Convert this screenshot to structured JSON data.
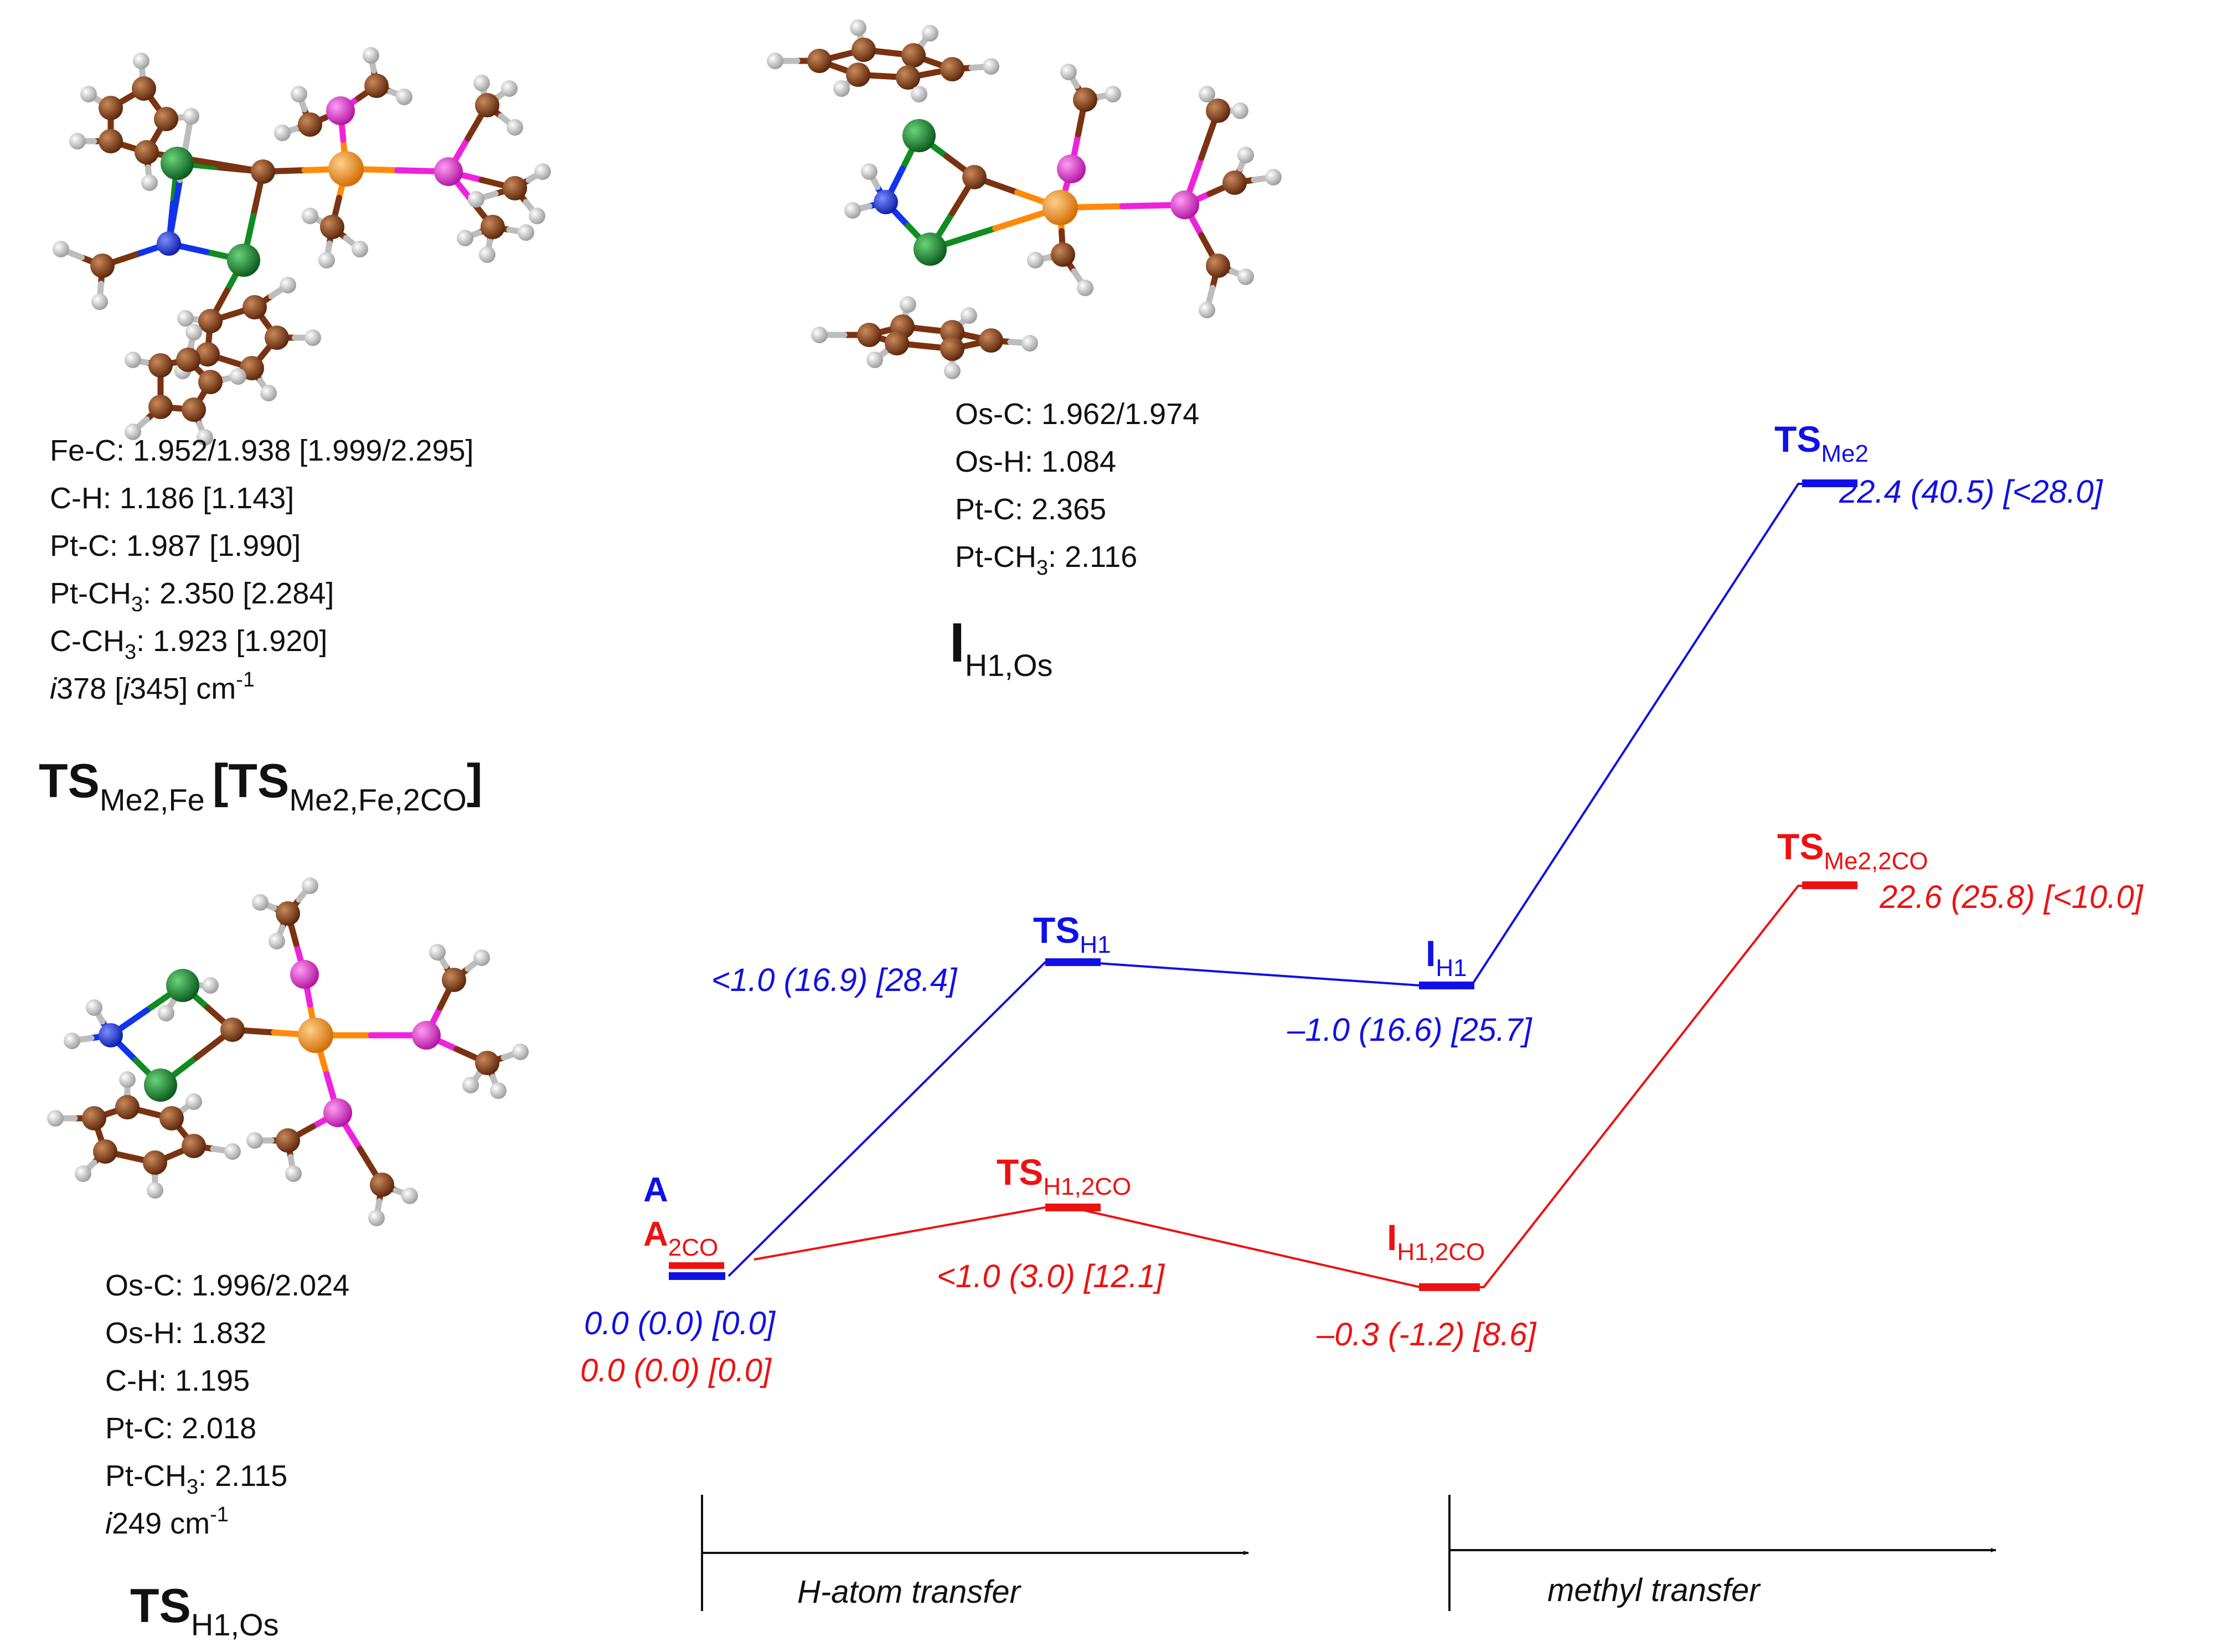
{
  "colors": {
    "blue": "#1010e6",
    "red": "#ee1111",
    "carbon": "#7a3311",
    "hydrogen": "#d8d8d8",
    "phosphorus": "#ee22dd",
    "metal": "#ff8a0a",
    "nitrogen": "#1133ee",
    "chlorine": "#118c22"
  },
  "structures": [
    {
      "id": "TSMe2Fe",
      "distances": [
        {
          "pre": "Fe-C: 1.952/1.938 [1.999/2.295]"
        },
        {
          "pre": "C-H: 1.186 [1.143]"
        },
        {
          "pre": "Pt-C: 1.987 [1.990]"
        },
        {
          "pre": "Pt-CH",
          "sub": "3",
          "post": ": 2.350 [2.284]"
        },
        {
          "pre": "C-CH",
          "sub": "3",
          "post": ": 1.923 [1.920]"
        },
        {
          "ital": "i",
          "pre": "378 [",
          "ital2": "i",
          "post": "345] cm",
          "sup": "-1"
        }
      ],
      "label": {
        "main": "TS",
        "sub": "Me2,Fe",
        "bracket_open": "[",
        "main2": "TS",
        "sub2": "Me2,Fe,2CO",
        "bracket_close": "]"
      }
    },
    {
      "id": "IH1Os",
      "distances": [
        {
          "pre": "Os-C: 1.962/1.974"
        },
        {
          "pre": "Os-H: 1.084"
        },
        {
          "pre": "Pt-C: 2.365"
        },
        {
          "pre": "Pt-CH",
          "sub": "3",
          "post": ": 2.116"
        }
      ],
      "label": {
        "main": "I",
        "sub": "H1,Os"
      }
    },
    {
      "id": "TSH1Os",
      "distances": [
        {
          "pre": "Os-C: 1.996/2.024"
        },
        {
          "pre": "Os-H: 1.832"
        },
        {
          "pre": "C-H: 1.195"
        },
        {
          "pre": "Pt-C: 2.018"
        },
        {
          "pre": "Pt-CH",
          "sub": "3",
          "post": ": 2.115"
        },
        {
          "ital": "i",
          "pre": "249 cm",
          "sup": "-1"
        }
      ],
      "label": {
        "main": "TS",
        "sub": "H1,Os"
      }
    }
  ],
  "diagram": {
    "blue_path": [
      {
        "main": "A",
        "sub": "",
        "value": "0.0 (0.0) [0.0]",
        "energy": 0.0
      },
      {
        "main": "TS",
        "sub": "H1",
        "value": "<1.0 (16.9) [28.4]",
        "energy": 1.0
      },
      {
        "main": "I",
        "sub": "H1",
        "value": "–1.0 (16.6) [25.7]",
        "energy": -1.0
      },
      {
        "main": "TS",
        "sub": "Me2",
        "value": "22.4 (40.5) [<28.0]",
        "energy": 22.4
      }
    ],
    "red_path": [
      {
        "main": "A",
        "sub": "2CO",
        "value": "0.0 (0.0) [0.0]",
        "energy": 0.0
      },
      {
        "main": "TS",
        "sub": "H1,2CO",
        "value": "<1.0 (3.0) [12.1]",
        "energy": 1.0
      },
      {
        "main": "I",
        "sub": "H1,2CO",
        "value": "–0.3 (-1.2) [8.6]",
        "energy": -0.3
      },
      {
        "main": "TS",
        "sub": "Me2,2CO",
        "value": "22.6 (25.8) [<10.0]",
        "energy": 22.6
      }
    ],
    "axes": [
      {
        "label": "H-atom transfer"
      },
      {
        "label": "methyl transfer"
      }
    ]
  }
}
